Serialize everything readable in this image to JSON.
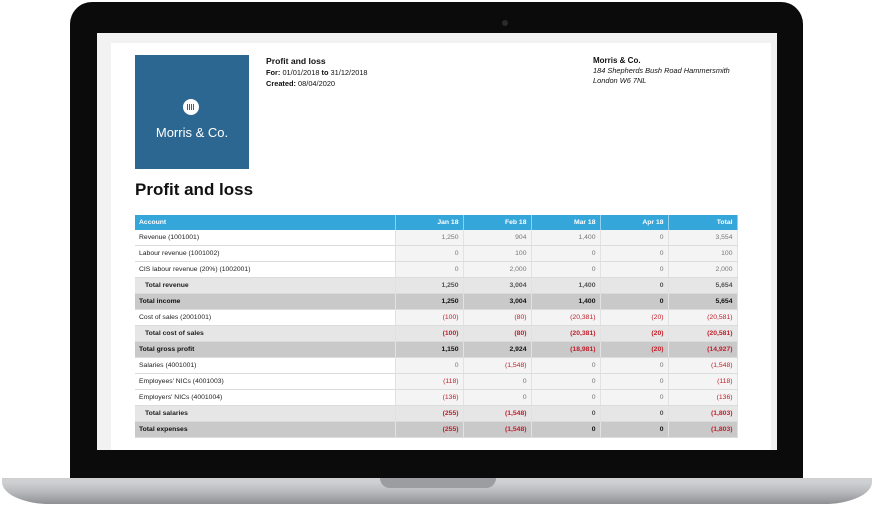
{
  "report": {
    "header_title": "Profit and loss",
    "for_label": "For:",
    "period_start": "01/01/2018",
    "to_word": "to",
    "period_end": "31/12/2018",
    "created_label": "Created:",
    "created_date": "08/04/2020",
    "main_title": "Profit and loss"
  },
  "company": {
    "logo_text": "Morris & Co.",
    "name": "Morris & Co.",
    "address_line1": "184 Shepherds Bush Road Hammersmith",
    "address_line2": "London W6 7NL"
  },
  "colors": {
    "logo_bg": "#2c6791",
    "table_header": "#35a6da",
    "negative": "#c0202c"
  },
  "table": {
    "columns": [
      "Account",
      "Jan 18",
      "Feb 18",
      "Mar 18",
      "Apr 18",
      "Total"
    ],
    "rows": [
      {
        "type": "norm",
        "label": "Revenue (1001001)",
        "values": [
          "1,250",
          "904",
          "1,400",
          "0",
          "3,554"
        ]
      },
      {
        "type": "norm",
        "label": "Labour revenue (1001002)",
        "values": [
          "0",
          "100",
          "0",
          "0",
          "100"
        ]
      },
      {
        "type": "norm",
        "label": "CIS labour revenue (20%) (1002001)",
        "values": [
          "0",
          "2,000",
          "0",
          "0",
          "2,000"
        ]
      },
      {
        "type": "sub",
        "label": "Total revenue",
        "values": [
          "1,250",
          "3,004",
          "1,400",
          "0",
          "5,654"
        ]
      },
      {
        "type": "tot",
        "label": "Total income",
        "values": [
          "1,250",
          "3,004",
          "1,400",
          "0",
          "5,654"
        ]
      },
      {
        "type": "norm",
        "label": "Cost of sales (2001001)",
        "values": [
          "(100)",
          "(80)",
          "(20,381)",
          "(20)",
          "(20,581)"
        ]
      },
      {
        "type": "sub",
        "label": "Total cost of sales",
        "values": [
          "(100)",
          "(80)",
          "(20,381)",
          "(20)",
          "(20,581)"
        ]
      },
      {
        "type": "tot",
        "label": "Total gross profit",
        "values": [
          "1,150",
          "2,924",
          "(18,981)",
          "(20)",
          "(14,927)"
        ]
      },
      {
        "type": "norm",
        "label": "Salaries (4001001)",
        "values": [
          "0",
          "(1,548)",
          "0",
          "0",
          "(1,548)"
        ]
      },
      {
        "type": "norm",
        "label": "Employees' NICs (4001003)",
        "values": [
          "(118)",
          "0",
          "0",
          "0",
          "(118)"
        ]
      },
      {
        "type": "norm",
        "label": "Employers' NICs (4001004)",
        "values": [
          "(136)",
          "0",
          "0",
          "0",
          "(136)"
        ]
      },
      {
        "type": "sub",
        "label": "Total salaries",
        "values": [
          "(255)",
          "(1,548)",
          "0",
          "0",
          "(1,803)"
        ]
      },
      {
        "type": "tot",
        "label": "Total expenses",
        "values": [
          "(255)",
          "(1,548)",
          "0",
          "0",
          "(1,803)"
        ]
      }
    ]
  }
}
